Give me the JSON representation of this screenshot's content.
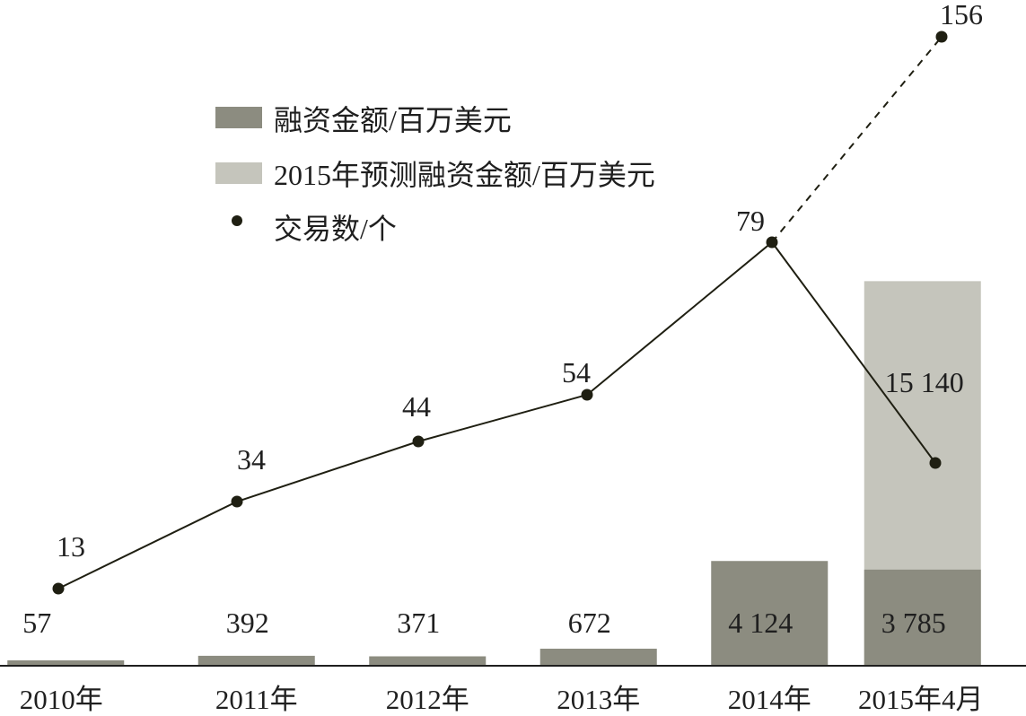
{
  "chart_data": {
    "type": "bar",
    "categories": [
      "2010年",
      "2011年",
      "2012年",
      "2013年",
      "2014年",
      "2015年4月"
    ],
    "series": [
      {
        "name": "融资金额/百万美元",
        "kind": "bar",
        "color": "#8c8c80",
        "values": [
          57,
          392,
          371,
          672,
          4124,
          3785
        ],
        "labels": [
          "57",
          "392",
          "371",
          "672",
          "4 124",
          "3 785"
        ]
      },
      {
        "name": "2015年预测融资金额/百万美元",
        "kind": "bar-stacked",
        "color": "#c5c5bc",
        "values": [
          null,
          null,
          null,
          null,
          null,
          15140
        ],
        "labels": [
          "",
          "",
          "",
          "",
          "",
          "15 140"
        ]
      },
      {
        "name": "交易数/个",
        "kind": "line",
        "color": "#1f1f12",
        "values": [
          13,
          34,
          44,
          54,
          79,
          156
        ],
        "labels": [
          "13",
          "34",
          "44",
          "54",
          "79",
          "156"
        ],
        "secondary_point": {
          "category": "2015年4月",
          "value": 29
        },
        "dashed_segment": [
          "2014年",
          "2015年4月"
        ]
      }
    ],
    "bar_ylim": [
      0,
      16000
    ],
    "line_ylim": [
      0,
      165
    ],
    "legend": {
      "placement": "top-left"
    },
    "grid": false
  }
}
